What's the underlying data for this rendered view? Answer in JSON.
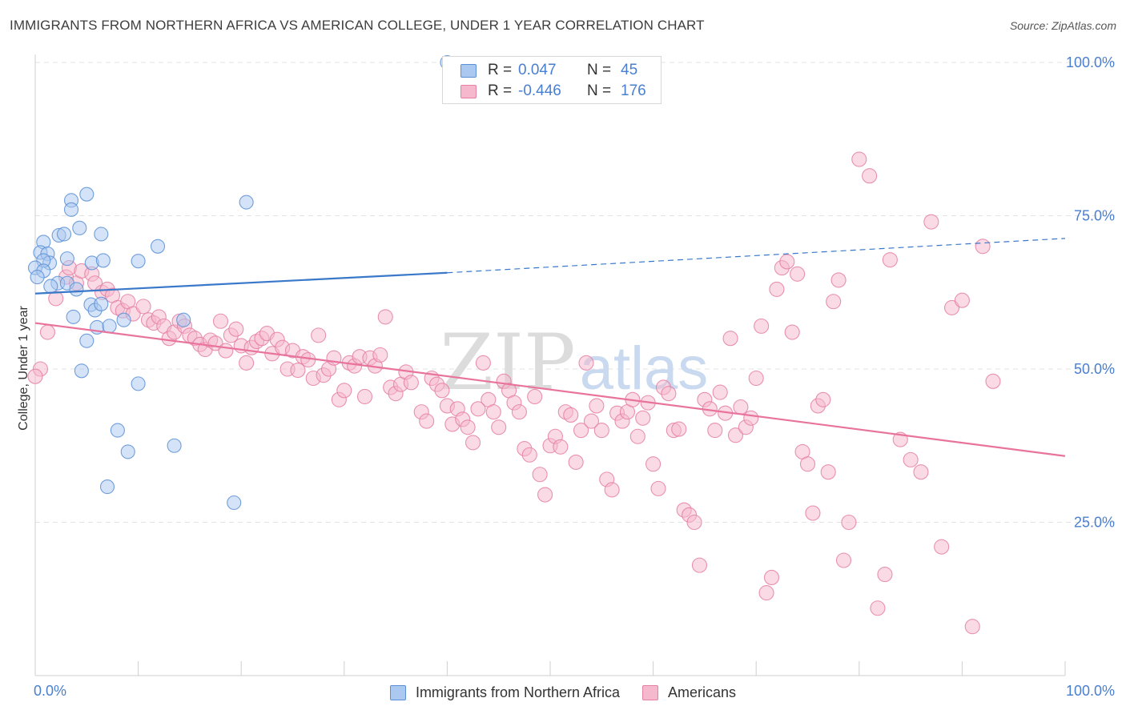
{
  "header": {
    "title": "IMMIGRANTS FROM NORTHERN AFRICA VS AMERICAN COLLEGE, UNDER 1 YEAR CORRELATION CHART",
    "source": "Source: ZipAtlas.com"
  },
  "watermark": {
    "zip": "ZIP",
    "atlas": "atlas"
  },
  "legend": {
    "rows": [
      {
        "r_label": "R =",
        "r_value": "0.047",
        "n_label": "N =",
        "n_value": "45"
      },
      {
        "r_label": "R =",
        "r_value": "-0.446",
        "n_label": "N =",
        "n_value": "176"
      }
    ]
  },
  "bottom_legend": {
    "items": [
      {
        "label": "Immigrants from Northern Africa"
      },
      {
        "label": "Americans"
      }
    ]
  },
  "colors": {
    "blue_fill": "#aac8f0",
    "blue_stroke": "#5b8fd6",
    "blue_line": "#3a78c9",
    "pink_fill": "#f5b8cc",
    "pink_stroke": "#e57fa3",
    "pink_line": "#e8739c",
    "value_text": "#4a7fd0",
    "grid": "#e3e3e3"
  },
  "chart_data": {
    "type": "scatter",
    "ylabel": "College, Under 1 year",
    "xlim": [
      0,
      100
    ],
    "ylim": [
      0,
      100
    ],
    "x_ticks": [
      {
        "value": 0,
        "label": "0.0%"
      },
      {
        "value": 100,
        "label": "100.0%"
      }
    ],
    "y_ticks": [
      {
        "value": 25,
        "label": "25.0%"
      },
      {
        "value": 50,
        "label": "50.0%"
      },
      {
        "value": 75,
        "label": "75.0%"
      },
      {
        "value": 100,
        "label": "100.0%"
      }
    ],
    "grid": true,
    "series": [
      {
        "name": "Immigrants from Northern Africa",
        "color": "blue",
        "trend": {
          "x1": 0,
          "y1": 62.3,
          "x2": 40,
          "y2": 65.7,
          "dash_to_x": 100,
          "dash_to_y": 71.3
        },
        "points": [
          [
            40,
            100
          ],
          [
            5,
            78.5
          ],
          [
            3.5,
            77.5
          ],
          [
            3.5,
            76
          ],
          [
            20.5,
            77.2
          ],
          [
            6.4,
            72
          ],
          [
            2.3,
            71.8
          ],
          [
            4.3,
            73
          ],
          [
            2.8,
            72
          ],
          [
            0.8,
            70.7
          ],
          [
            0.5,
            69
          ],
          [
            11.9,
            70
          ],
          [
            1.2,
            68.8
          ],
          [
            1.4,
            67.3
          ],
          [
            0.8,
            67.7
          ],
          [
            3.1,
            68
          ],
          [
            5.5,
            67.3
          ],
          [
            6.6,
            67.7
          ],
          [
            10,
            67.6
          ],
          [
            0,
            66.5
          ],
          [
            0.8,
            66
          ],
          [
            0.2,
            65
          ],
          [
            2.2,
            64
          ],
          [
            3.1,
            64
          ],
          [
            1.5,
            63.5
          ],
          [
            4,
            63
          ],
          [
            5.4,
            60.5
          ],
          [
            5.8,
            59.6
          ],
          [
            6.4,
            60.6
          ],
          [
            3.7,
            58.5
          ],
          [
            8.6,
            58
          ],
          [
            14.4,
            58
          ],
          [
            6,
            56.8
          ],
          [
            7.2,
            57
          ],
          [
            5,
            54.6
          ],
          [
            4.5,
            49.7
          ],
          [
            10,
            47.6
          ],
          [
            8,
            40
          ],
          [
            9,
            36.5
          ],
          [
            13.5,
            37.5
          ],
          [
            7,
            30.8
          ],
          [
            19.3,
            28.2
          ]
        ]
      },
      {
        "name": "Americans",
        "color": "pink",
        "trend": {
          "x1": 0,
          "y1": 57.5,
          "x2": 100,
          "y2": 35.8
        },
        "points": [
          [
            1.2,
            56
          ],
          [
            0.5,
            50
          ],
          [
            0,
            48.8
          ],
          [
            2,
            61.5
          ],
          [
            3,
            65
          ],
          [
            3.3,
            66.5
          ],
          [
            4,
            64
          ],
          [
            4.5,
            66
          ],
          [
            5.5,
            65.5
          ],
          [
            5.8,
            64
          ],
          [
            6.5,
            62.5
          ],
          [
            7,
            63
          ],
          [
            7.5,
            62
          ],
          [
            8,
            60
          ],
          [
            8.5,
            59.5
          ],
          [
            9,
            61
          ],
          [
            9.5,
            59
          ],
          [
            10.5,
            60.2
          ],
          [
            11,
            58
          ],
          [
            11.5,
            57.5
          ],
          [
            12,
            58.5
          ],
          [
            12.5,
            57
          ],
          [
            13,
            55
          ],
          [
            13.5,
            56
          ],
          [
            14,
            57.8
          ],
          [
            14.5,
            57
          ],
          [
            15,
            55.5
          ],
          [
            15.5,
            55
          ],
          [
            16,
            54
          ],
          [
            16.5,
            53.2
          ],
          [
            17,
            54.7
          ],
          [
            17.5,
            54.2
          ],
          [
            18,
            57.8
          ],
          [
            18.5,
            53
          ],
          [
            19,
            55.5
          ],
          [
            19.5,
            56.5
          ],
          [
            20,
            53.8
          ],
          [
            20.5,
            51
          ],
          [
            21,
            53.5
          ],
          [
            21.5,
            54.5
          ],
          [
            22,
            55
          ],
          [
            22.5,
            55.8
          ],
          [
            23,
            52.5
          ],
          [
            23.5,
            54.8
          ],
          [
            24,
            53.5
          ],
          [
            24.5,
            50
          ],
          [
            25,
            53
          ],
          [
            25.5,
            49.8
          ],
          [
            26,
            52
          ],
          [
            26.5,
            51.5
          ],
          [
            27,
            48.5
          ],
          [
            27.5,
            55.5
          ],
          [
            28,
            49
          ],
          [
            28.5,
            50
          ],
          [
            29,
            51.8
          ],
          [
            29.5,
            45
          ],
          [
            30,
            46.5
          ],
          [
            30.5,
            51
          ],
          [
            31,
            50.5
          ],
          [
            31.5,
            52
          ],
          [
            32,
            45.5
          ],
          [
            32.5,
            51.8
          ],
          [
            33,
            50.5
          ],
          [
            33.5,
            52.3
          ],
          [
            34,
            58.5
          ],
          [
            34.5,
            47
          ],
          [
            35,
            46
          ],
          [
            35.5,
            47.5
          ],
          [
            36,
            49.5
          ],
          [
            36.5,
            47.8
          ],
          [
            37.5,
            43
          ],
          [
            38,
            41.5
          ],
          [
            38.5,
            48.5
          ],
          [
            39,
            47.5
          ],
          [
            39.5,
            46.5
          ],
          [
            40,
            44
          ],
          [
            40.5,
            41
          ],
          [
            41,
            43.5
          ],
          [
            41.5,
            41.8
          ],
          [
            42,
            40.5
          ],
          [
            42.5,
            38
          ],
          [
            43,
            43.5
          ],
          [
            43.5,
            51
          ],
          [
            44,
            45
          ],
          [
            44.5,
            43
          ],
          [
            45,
            40.5
          ],
          [
            45.5,
            48
          ],
          [
            46,
            46.5
          ],
          [
            46.5,
            44.5
          ],
          [
            47,
            43
          ],
          [
            47.5,
            37
          ],
          [
            48,
            36
          ],
          [
            48.5,
            45.5
          ],
          [
            49,
            32.8
          ],
          [
            49.5,
            29.5
          ],
          [
            50,
            37.5
          ],
          [
            50.5,
            39
          ],
          [
            51,
            37.3
          ],
          [
            51.5,
            43
          ],
          [
            52,
            42.5
          ],
          [
            52.5,
            34.8
          ],
          [
            53,
            40
          ],
          [
            53.5,
            51
          ],
          [
            54,
            41.5
          ],
          [
            54.5,
            44
          ],
          [
            55,
            40
          ],
          [
            55.5,
            32
          ],
          [
            56,
            30.3
          ],
          [
            56.5,
            42.8
          ],
          [
            57,
            41.5
          ],
          [
            57.5,
            43
          ],
          [
            58,
            45
          ],
          [
            58.5,
            39
          ],
          [
            59,
            42
          ],
          [
            59.5,
            44.5
          ],
          [
            60,
            34.5
          ],
          [
            60.5,
            30.5
          ],
          [
            61,
            47
          ],
          [
            61.5,
            46
          ],
          [
            62,
            40
          ],
          [
            62.5,
            40.2
          ],
          [
            63,
            27
          ],
          [
            63.5,
            26.2
          ],
          [
            64,
            25
          ],
          [
            64.5,
            18
          ],
          [
            65,
            45
          ],
          [
            65.5,
            43.5
          ],
          [
            66,
            40
          ],
          [
            66.5,
            46.2
          ],
          [
            67,
            42.8
          ],
          [
            67.5,
            55
          ],
          [
            68,
            39.2
          ],
          [
            68.5,
            43.8
          ],
          [
            69,
            40.5
          ],
          [
            69.5,
            42
          ],
          [
            70,
            48.5
          ],
          [
            70.5,
            57
          ],
          [
            71,
            13.5
          ],
          [
            71.5,
            16
          ],
          [
            72,
            63
          ],
          [
            72.5,
            66.5
          ],
          [
            73,
            67.5
          ],
          [
            73.5,
            56
          ],
          [
            74,
            65.5
          ],
          [
            74.5,
            36.5
          ],
          [
            75,
            34.5
          ],
          [
            75.5,
            26.5
          ],
          [
            76,
            44
          ],
          [
            76.5,
            45
          ],
          [
            77,
            33.2
          ],
          [
            77.5,
            61
          ],
          [
            78,
            64.5
          ],
          [
            78.5,
            18.8
          ],
          [
            79,
            25
          ],
          [
            80,
            84.2
          ],
          [
            81,
            81.5
          ],
          [
            81.8,
            11
          ],
          [
            82.5,
            16.5
          ],
          [
            83,
            67.8
          ],
          [
            84,
            38.5
          ],
          [
            85,
            35.2
          ],
          [
            86,
            33.2
          ],
          [
            87,
            74
          ],
          [
            88,
            21
          ],
          [
            89,
            60
          ],
          [
            90,
            61.2
          ],
          [
            91,
            8
          ],
          [
            92,
            70
          ],
          [
            93,
            48
          ]
        ]
      }
    ]
  }
}
